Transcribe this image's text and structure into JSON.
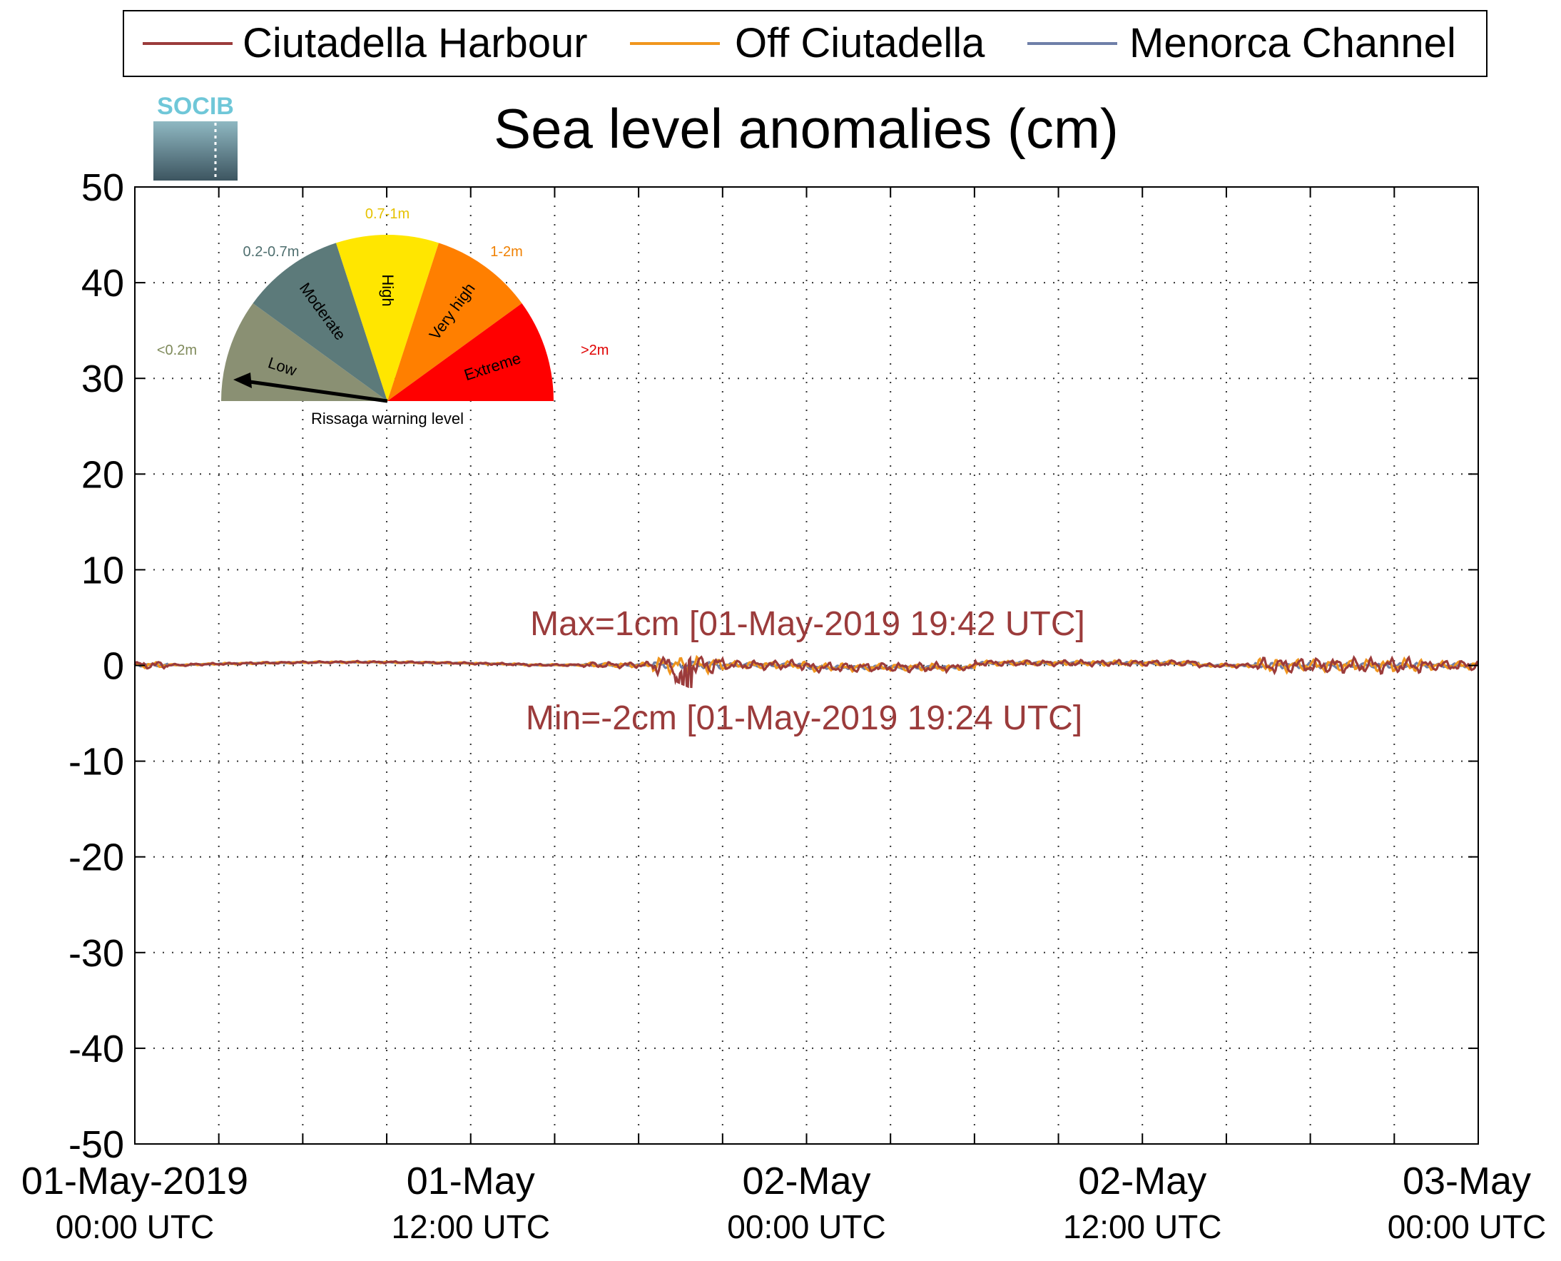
{
  "chart_data": {
    "type": "line",
    "title": "Sea level anomalies (cm)",
    "logo_text": "SOCIB",
    "ylim": [
      -50,
      50
    ],
    "yticks": [
      50,
      40,
      30,
      20,
      10,
      0,
      -10,
      -20,
      -30,
      -40,
      -50
    ],
    "ytick_labels": [
      "50",
      "40",
      "30",
      "20",
      "10",
      "0",
      "-10",
      "-20",
      "-30",
      "-40",
      "-50"
    ],
    "xlim_hours": [
      0,
      48
    ],
    "grid": true,
    "legend_position": "top",
    "xtick_labels": [
      {
        "h": 0,
        "line1": "01-May-2019",
        "line2": "00:00 UTC"
      },
      {
        "h": 12,
        "line1": "01-May",
        "line2": "12:00 UTC"
      },
      {
        "h": 24,
        "line1": "02-May",
        "line2": "00:00 UTC"
      },
      {
        "h": 36,
        "line1": "02-May",
        "line2": "12:00 UTC"
      },
      {
        "h": 48,
        "line1": "03-May",
        "line2": "00:00 UTC"
      }
    ],
    "series": [
      {
        "name": "Ciutadella Harbour",
        "color": "#9b3b3b"
      },
      {
        "name": "Off Ciutadella",
        "color": "#f0961e"
      },
      {
        "name": "Menorca Channel",
        "color": "#6f7fa8"
      }
    ],
    "annotations": {
      "max": "Max=1cm [01-May-2019 19:42 UTC]",
      "min": "Min=-2cm [01-May-2019 19:24 UTC]",
      "color": "#9b3b3b"
    },
    "gauge": {
      "caption": "Rissaga warning level",
      "needle_level": "Low",
      "segments": [
        {
          "label": "Low",
          "range": "<0.2m",
          "color": "#8a9073",
          "range_color": "#7f8a5b"
        },
        {
          "label": "Moderate",
          "range": "0.2-0.7m",
          "color": "#5c7a7a",
          "range_color": "#4f6f6f"
        },
        {
          "label": "High",
          "range": "0.7-1m",
          "color": "#ffe600",
          "range_color": "#e6c200"
        },
        {
          "label": "Very high",
          "range": "1-2m",
          "color": "#ff7f00",
          "range_color": "#f08000"
        },
        {
          "label": "Extreme",
          "range": ">2m",
          "color": "#ff0000",
          "range_color": "#e00000"
        }
      ]
    }
  }
}
